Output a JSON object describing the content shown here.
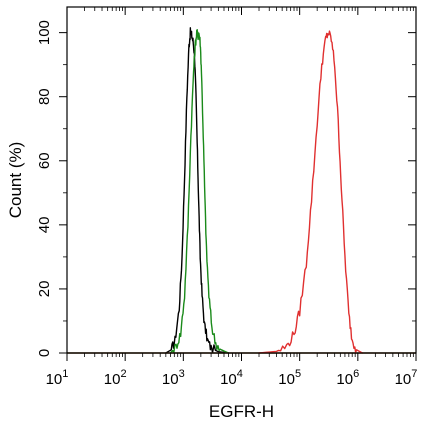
{
  "chart_data": {
    "type": "line",
    "title": "",
    "xlabel": "EGFR-H",
    "ylabel": "Count  (%)",
    "xscale": "log",
    "xlim": [
      10,
      10000000
    ],
    "ylim": [
      0,
      108
    ],
    "grid": false,
    "x_ticks": [
      {
        "base": "10",
        "exp": "1"
      },
      {
        "base": "10",
        "exp": "2"
      },
      {
        "base": "10",
        "exp": "3"
      },
      {
        "base": "10",
        "exp": "4"
      },
      {
        "base": "10",
        "exp": "5"
      },
      {
        "base": "10",
        "exp": "6"
      },
      {
        "base": "10",
        "exp": "7"
      }
    ],
    "y_ticks": [
      "0",
      "20",
      "40",
      "60",
      "80",
      "100"
    ],
    "y_tick_values": [
      0,
      20,
      40,
      60,
      80,
      100
    ],
    "series": [
      {
        "color": "#000000",
        "points": [
          [
            500,
            0
          ],
          [
            620,
            1
          ],
          [
            720,
            4
          ],
          [
            850,
            14
          ],
          [
            950,
            30
          ],
          [
            1050,
            55
          ],
          [
            1150,
            80
          ],
          [
            1250,
            96
          ],
          [
            1320,
            100
          ],
          [
            1400,
            99
          ],
          [
            1480,
            97
          ],
          [
            1560,
            93
          ],
          [
            1650,
            80
          ],
          [
            1750,
            62
          ],
          [
            1850,
            45
          ],
          [
            1950,
            30
          ],
          [
            2100,
            18
          ],
          [
            2300,
            9
          ],
          [
            2600,
            4
          ],
          [
            3000,
            1.5
          ],
          [
            4000,
            0.4
          ],
          [
            6000,
            0
          ]
        ]
      },
      {
        "color": "#1a8a1a",
        "points": [
          [
            600,
            0
          ],
          [
            750,
            2
          ],
          [
            900,
            6
          ],
          [
            1050,
            18
          ],
          [
            1200,
            40
          ],
          [
            1350,
            68
          ],
          [
            1500,
            88
          ],
          [
            1600,
            96
          ],
          [
            1700,
            100
          ],
          [
            1780,
            99
          ],
          [
            1850,
            100
          ],
          [
            1950,
            97
          ],
          [
            2050,
            88
          ],
          [
            2200,
            68
          ],
          [
            2350,
            48
          ],
          [
            2500,
            32
          ],
          [
            2750,
            18
          ],
          [
            3100,
            8
          ],
          [
            3600,
            3
          ],
          [
            4500,
            1
          ],
          [
            6000,
            0
          ]
        ]
      },
      {
        "color": "#e03030",
        "points": [
          [
            20000,
            0
          ],
          [
            40000,
            0.5
          ],
          [
            60000,
            2
          ],
          [
            80000,
            6
          ],
          [
            100000,
            13
          ],
          [
            130000,
            28
          ],
          [
            160000,
            48
          ],
          [
            200000,
            72
          ],
          [
            240000,
            90
          ],
          [
            280000,
            98
          ],
          [
            310000,
            100
          ],
          [
            350000,
            98
          ],
          [
            400000,
            90
          ],
          [
            460000,
            72
          ],
          [
            520000,
            52
          ],
          [
            600000,
            30
          ],
          [
            700000,
            12
          ],
          [
            800000,
            4
          ],
          [
            950000,
            1
          ],
          [
            1200000,
            0
          ]
        ]
      }
    ]
  }
}
